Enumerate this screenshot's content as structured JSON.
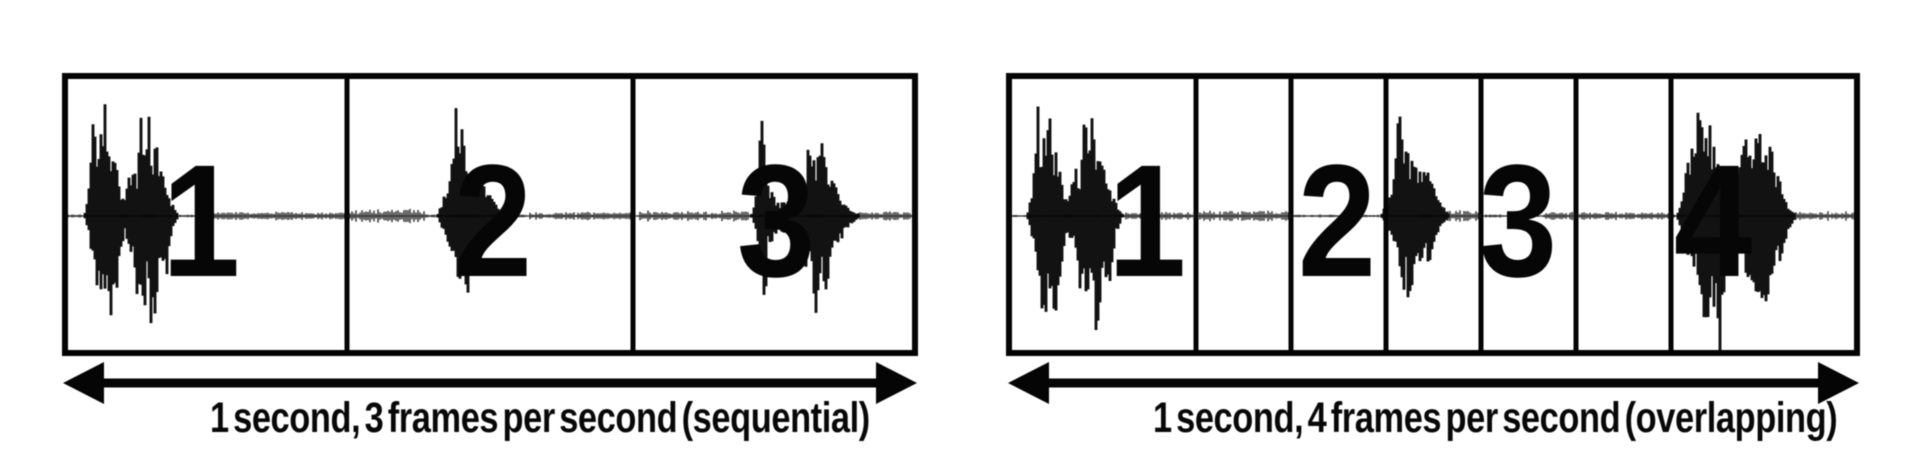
{
  "figure": {
    "colors": {
      "ink": "#000000",
      "background": "#ffffff"
    },
    "diagrams": [
      {
        "name": "sequential",
        "caption": "1 second, 3 frames per second (sequential)",
        "frame_labels": [
          "1",
          "2",
          "3"
        ]
      },
      {
        "name": "overlapping",
        "caption": "1 second, 4 frames per second (overlapping)",
        "frame_labels": [
          "1",
          "2",
          "3",
          "4"
        ]
      }
    ]
  }
}
